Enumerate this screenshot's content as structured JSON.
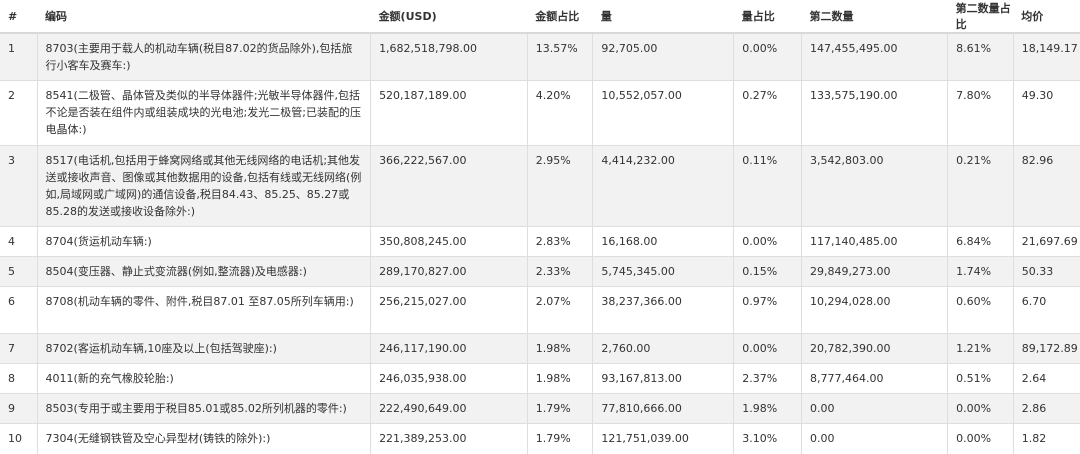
{
  "headers": [
    "#",
    "编码",
    "金额(USD)",
    "金额占比",
    "量",
    "量占比",
    "第二数量",
    "第二数量占比",
    "均价"
  ],
  "rows": [
    [
      "1",
      "8703(主要用于载人的机动车辆(税目87.02的货品除外),包括旅行小客车及赛车:)",
      "1,682,518,798.00",
      "13.57%",
      "92,705.00",
      "0.00%",
      "147,455,495.00",
      "8.61%",
      "18,149.17"
    ],
    [
      "2",
      "8541(二极管、晶体管及类似的半导体器件;光敏半导体器件,包括不论是否装在组件内或组装成块的光电池;发光二极管;已装配的压电晶体:)",
      "520,187,189.00",
      "4.20%",
      "10,552,057.00",
      "0.27%",
      "133,575,190.00",
      "7.80%",
      "49.30"
    ],
    [
      "3",
      "8517(电话机,包括用于蜂窝网络或其他无线网络的电话机;其他发送或接收声音、图像或其他数据用的设备,包括有线或无线网络(例如,局域网或广域网)的通信设备,税目84.43、85.25、85.27或85.28的发送或接收设备除外:)",
      "366,222,567.00",
      "2.95%",
      "4,414,232.00",
      "0.11%",
      "3,542,803.00",
      "0.21%",
      "82.96"
    ],
    [
      "4",
      "8704(货运机动车辆:)",
      "350,808,245.00",
      "2.83%",
      "16,168.00",
      "0.00%",
      "117,140,485.00",
      "6.84%",
      "21,697.69"
    ],
    [
      "5",
      "8504(变压器、静止式变流器(例如,整流器)及电感器:)",
      "289,170,827.00",
      "2.33%",
      "5,745,345.00",
      "0.15%",
      "29,849,273.00",
      "1.74%",
      "50.33"
    ],
    [
      "6",
      "8708(机动车辆的零件、附件,税目87.01 至87.05所列车辆用:)",
      "256,215,027.00",
      "2.07%",
      "38,237,366.00",
      "0.97%",
      "10,294,028.00",
      "0.60%",
      "6.70"
    ],
    [
      "7",
      "8702(客运机动车辆,10座及以上(包括驾驶座):)",
      "246,117,190.00",
      "1.98%",
      "2,760.00",
      "0.00%",
      "20,782,390.00",
      "1.21%",
      "89,172.89"
    ],
    [
      "8",
      "4011(新的充气橡胶轮胎:)",
      "246,035,938.00",
      "1.98%",
      "93,167,813.00",
      "2.37%",
      "8,777,464.00",
      "0.51%",
      "2.64"
    ],
    [
      "9",
      "8503(专用于或主要用于税目85.01或85.02所列机器的零件:)",
      "222,490,649.00",
      "1.79%",
      "77,810,666.00",
      "1.98%",
      "0.00",
      "0.00%",
      "2.86"
    ],
    [
      "10",
      "7304(无缝钢铁管及空心异型材(铸铁的除外):)",
      "221,389,253.00",
      "1.79%",
      "121,751,039.00",
      "3.10%",
      "0.00",
      "0.00%",
      "1.82"
    ]
  ]
}
